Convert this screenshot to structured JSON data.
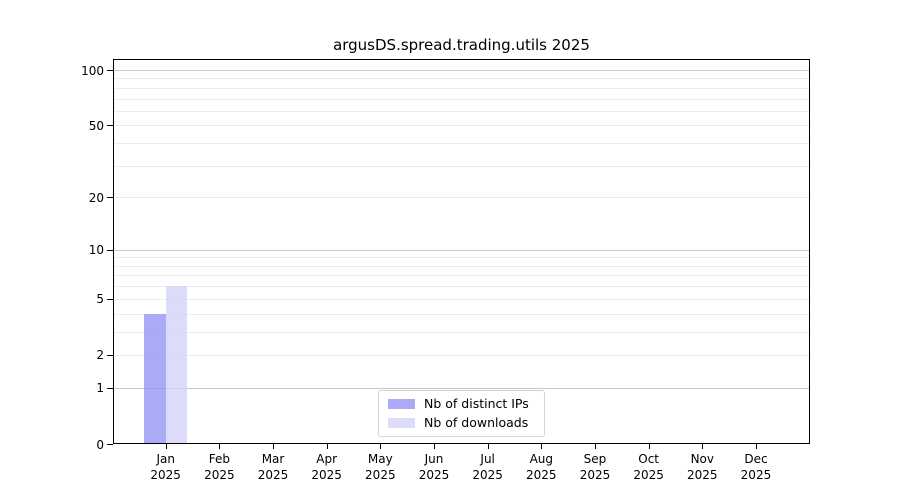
{
  "title": "argusDS.spread.trading.utils 2025",
  "chart_data": {
    "type": "bar",
    "title": "argusDS.spread.trading.utils 2025",
    "x_categories": [
      "Jan",
      "Feb",
      "Mar",
      "Apr",
      "May",
      "Jun",
      "Jul",
      "Aug",
      "Sep",
      "Oct",
      "Nov",
      "Dec"
    ],
    "x_year_label": "2025",
    "series": [
      {
        "name": "Nb of distinct IPs",
        "color": "rgba(142,142,243,0.75)",
        "values": [
          4,
          0,
          0,
          0,
          0,
          0,
          0,
          0,
          0,
          0,
          0,
          0
        ]
      },
      {
        "name": "Nb of downloads",
        "color": "rgba(208,208,247,0.75)",
        "values": [
          6,
          0,
          0,
          0,
          0,
          0,
          0,
          0,
          0,
          0,
          0,
          0
        ]
      }
    ],
    "yscale": "log1p",
    "ylim": [
      0,
      116
    ],
    "ytick_labels": [
      100,
      50,
      20,
      10,
      5,
      2,
      1,
      0
    ],
    "y_major_gridlines": [
      1,
      10,
      100
    ],
    "y_minor_gridlines": [
      2,
      3,
      4,
      5,
      6,
      7,
      8,
      9,
      20,
      30,
      40,
      50,
      60,
      70,
      80,
      90
    ],
    "grid_color_major": "#c9c9c9",
    "grid_color_minor": "#ececec",
    "legend_position": "lower center",
    "axis_color": "#000000"
  },
  "legend": {
    "item1": "Nb of distinct IPs",
    "item2": "Nb of downloads"
  }
}
